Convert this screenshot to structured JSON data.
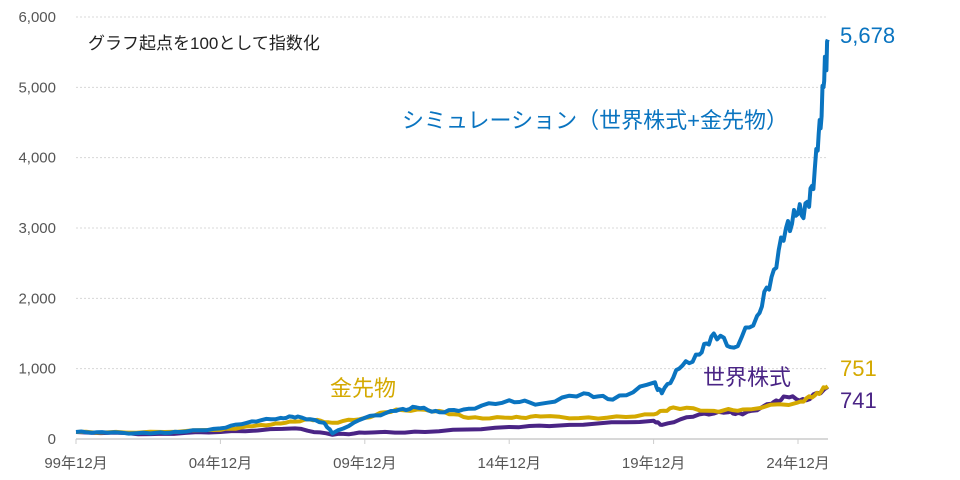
{
  "chart_data": {
    "type": "line",
    "title": "",
    "annotation": "グラフ起点を100として指数化",
    "xlabel": "",
    "ylabel": "",
    "ylim": [
      0,
      6000
    ],
    "xlim": [
      1999.917,
      2025.95
    ],
    "grid": true,
    "y_ticks": [
      "0",
      "1,000",
      "2,000",
      "3,000",
      "4,000",
      "5,000",
      "6,000"
    ],
    "y_tick_values": [
      0,
      1000,
      2000,
      3000,
      4000,
      5000,
      6000
    ],
    "x_ticks": [
      "99年12月",
      "04年12月",
      "09年12月",
      "14年12月",
      "19年12月",
      "24年12月"
    ],
    "x_tick_values": [
      1999.917,
      2004.917,
      2009.917,
      2014.917,
      2019.917,
      2024.917
    ],
    "series": [
      {
        "name": "シミュレーション（世界株式+金先物）",
        "color": "#0a74c0",
        "end_label": "5,678",
        "x": [
          1999.917,
          2001,
          2002.5,
          2003.5,
          2004.917,
          2006,
          2007,
          2007.6,
          2008.5,
          2008.8,
          2009.917,
          2011,
          2011.7,
          2012.5,
          2013.5,
          2014.917,
          2016,
          2017.5,
          2018.5,
          2019.917,
          2020.2,
          2020.8,
          2021.5,
          2022,
          2022.7,
          2023.5,
          2024,
          2024.5,
          2024.917,
          2025.3,
          2025.6,
          2025.8,
          2025.95
        ],
        "y": [
          100,
          90,
          80,
          100,
          150,
          250,
          300,
          320,
          230,
          80,
          300,
          400,
          450,
          380,
          430,
          550,
          500,
          650,
          560,
          800,
          650,
          1000,
          1200,
          1500,
          1300,
          1750,
          2300,
          3000,
          3200,
          3300,
          4100,
          5000,
          5678
        ]
      },
      {
        "name": "金先物",
        "color": "#d4a900",
        "end_label": "751",
        "x": [
          1999.917,
          2002,
          2004.917,
          2006,
          2007,
          2008,
          2008.8,
          2009.917,
          2011,
          2012.5,
          2013.5,
          2015,
          2016,
          2018,
          2019.917,
          2020.6,
          2022,
          2023,
          2024.917,
          2025.5,
          2025.95
        ],
        "y": [
          100,
          90,
          130,
          180,
          220,
          280,
          230,
          300,
          420,
          400,
          300,
          300,
          320,
          290,
          350,
          450,
          400,
          420,
          520,
          620,
          751
        ]
      },
      {
        "name": "世界株式",
        "color": "#4a2485",
        "end_label": "741",
        "x": [
          1999.917,
          2002.5,
          2004.917,
          2007.5,
          2008.8,
          2009.917,
          2012,
          2014.917,
          2017,
          2019.917,
          2020.2,
          2021.5,
          2022.5,
          2023,
          2024,
          2024.5,
          2025.2,
          2025.95
        ],
        "y": [
          100,
          70,
          100,
          150,
          60,
          90,
          100,
          170,
          200,
          260,
          200,
          350,
          380,
          350,
          500,
          600,
          550,
          741
        ]
      }
    ]
  }
}
